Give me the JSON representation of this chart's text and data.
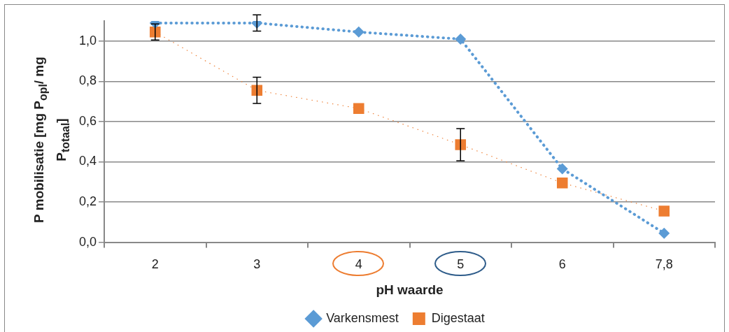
{
  "chart_data": {
    "type": "line",
    "xlabel": "pH waarde",
    "ylabel": "P mobilisatie  [mg P$_{opl}$/ mg P$_{totaal}$]",
    "categories": [
      "2",
      "3",
      "4",
      "5",
      "6",
      "7,8"
    ],
    "ylim": [
      0,
      1.1
    ],
    "yticks": [
      {
        "value": 0,
        "label": "0,0"
      },
      {
        "value": 0.2,
        "label": "0,2"
      },
      {
        "value": 0.4,
        "label": "0,4"
      },
      {
        "value": 0.6,
        "label": "0,6"
      },
      {
        "value": 0.8,
        "label": "0,8"
      },
      {
        "value": 1,
        "label": "1,0"
      }
    ],
    "grid": "y",
    "legend": "bottom",
    "series": [
      {
        "name": "Varkensmest",
        "color": "#5b9bd5",
        "marker": "diamond",
        "line_style": "dotted",
        "values": [
          1.09,
          1.09,
          1.045,
          1.01,
          0.365,
          0.045
        ],
        "errors": [
          null,
          0.04,
          null,
          null,
          null,
          null
        ]
      },
      {
        "name": "Digestaat",
        "color": "#ed7d31",
        "marker": "square",
        "line_style": "dotted",
        "values": [
          1.045,
          0.755,
          0.665,
          0.485,
          0.295,
          0.155
        ],
        "errors": [
          0.04,
          0.065,
          null,
          0.08,
          null,
          null
        ]
      }
    ]
  }
}
